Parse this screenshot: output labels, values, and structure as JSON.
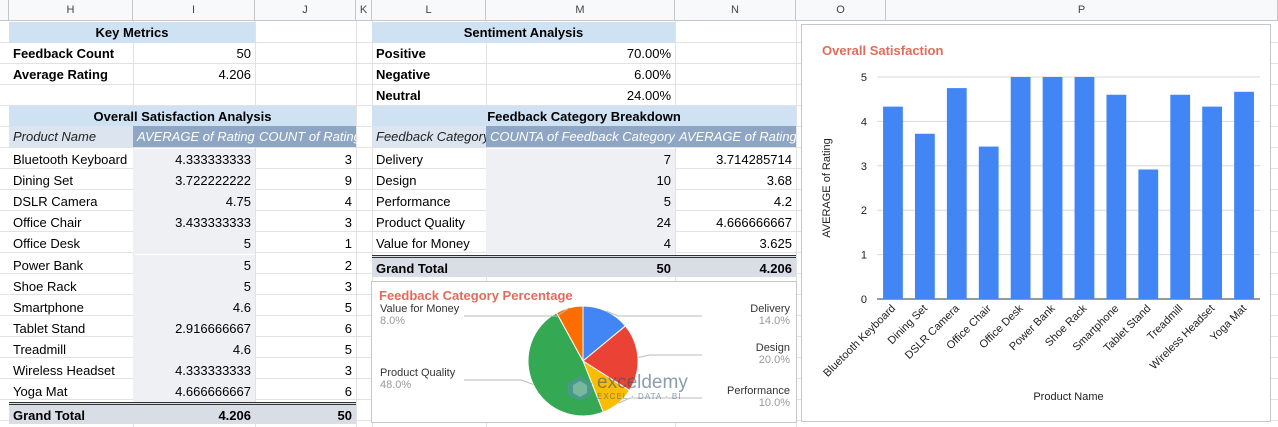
{
  "columns": [
    {
      "id": "H",
      "label": "H"
    },
    {
      "id": "I",
      "label": "I"
    },
    {
      "id": "J",
      "label": "J"
    },
    {
      "id": "K",
      "label": "K"
    },
    {
      "id": "L",
      "label": "L"
    },
    {
      "id": "M",
      "label": "M"
    },
    {
      "id": "N",
      "label": "N"
    },
    {
      "id": "O",
      "label": "O"
    },
    {
      "id": "P",
      "label": "P"
    }
  ],
  "key_metrics": {
    "title": "Key Metrics",
    "rows": [
      {
        "label": "Feedback Count",
        "value": "50"
      },
      {
        "label": "Average Rating",
        "value": "4.206"
      }
    ]
  },
  "sentiment": {
    "title": "Sentiment Analysis",
    "rows": [
      {
        "label": "Positive",
        "value": "70.00%"
      },
      {
        "label": "Negative",
        "value": "6.00%"
      },
      {
        "label": "Neutral",
        "value": "24.00%"
      }
    ]
  },
  "satisfaction": {
    "title": "Overall Satisfaction Analysis",
    "headers": [
      "Product Name",
      "AVERAGE of Rating",
      "COUNT of Rating"
    ],
    "rows": [
      [
        "Bluetooth Keyboard",
        "4.333333333",
        "3"
      ],
      [
        "Dining Set",
        "3.722222222",
        "9"
      ],
      [
        "DSLR Camera",
        "4.75",
        "4"
      ],
      [
        "Office Chair",
        "3.433333333",
        "3"
      ],
      [
        "Office Desk",
        "5",
        "1"
      ],
      [
        "Power Bank",
        "5",
        "2"
      ],
      [
        "Shoe Rack",
        "5",
        "3"
      ],
      [
        "Smartphone",
        "4.6",
        "5"
      ],
      [
        "Tablet Stand",
        "2.916666667",
        "6"
      ],
      [
        "Treadmill",
        "4.6",
        "5"
      ],
      [
        "Wireless Headset",
        "4.333333333",
        "3"
      ],
      [
        "Yoga Mat",
        "4.666666667",
        "6"
      ]
    ],
    "total": [
      "Grand Total",
      "4.206",
      "50"
    ]
  },
  "category": {
    "title": "Feedback Category Breakdown",
    "headers": [
      "Feedback Category",
      "COUNTA of Feedback Category",
      "AVERAGE of Rating"
    ],
    "rows": [
      [
        "Delivery",
        "7",
        "3.714285714"
      ],
      [
        "Design",
        "10",
        "3.68"
      ],
      [
        "Performance",
        "5",
        "4.2"
      ],
      [
        "Product Quality",
        "24",
        "4.666666667"
      ],
      [
        "Value for Money",
        "4",
        "3.625"
      ]
    ],
    "total": [
      "Grand Total",
      "50",
      "4.206"
    ]
  },
  "watermark": {
    "name": "exceldemy",
    "tagline": "EXCEL · DATA · BI"
  },
  "chart_data": [
    {
      "type": "pie",
      "title": "Feedback Category Percentage",
      "title_color": "#e06c5b",
      "slices": [
        {
          "label": "Delivery",
          "pct_label": "14.0%",
          "value": 14,
          "color": "#4285f4"
        },
        {
          "label": "Design",
          "pct_label": "20.0%",
          "value": 20,
          "color": "#ea4335"
        },
        {
          "label": "Performance",
          "pct_label": "10.0%",
          "value": 10,
          "color": "#fbbc04"
        },
        {
          "label": "Product Quality",
          "pct_label": "48.0%",
          "value": 48,
          "color": "#34a853"
        },
        {
          "label": "Value for Money",
          "pct_label": "8.0%",
          "value": 8,
          "color": "#ff6d01"
        }
      ]
    },
    {
      "type": "bar",
      "title": "Overall Satisfaction",
      "title_color": "#e06c5b",
      "xlabel": "Product Name",
      "ylabel": "AVERAGE of Rating",
      "ylim": [
        0,
        5
      ],
      "yticks": [
        "0",
        "1",
        "2",
        "3",
        "4",
        "5"
      ],
      "bar_color": "#4285f4",
      "categories": [
        "Bluetooth Keyboard",
        "Dining Set",
        "DSLR Camera",
        "Office Chair",
        "Office Desk",
        "Power Bank",
        "Shoe Rack",
        "Smartphone",
        "Tablet Stand",
        "Treadmill",
        "Wireless Headset",
        "Yoga Mat"
      ],
      "values": [
        4.333,
        3.722,
        4.75,
        3.433,
        5,
        5,
        5,
        4.6,
        2.917,
        4.6,
        4.333,
        4.667
      ]
    }
  ]
}
